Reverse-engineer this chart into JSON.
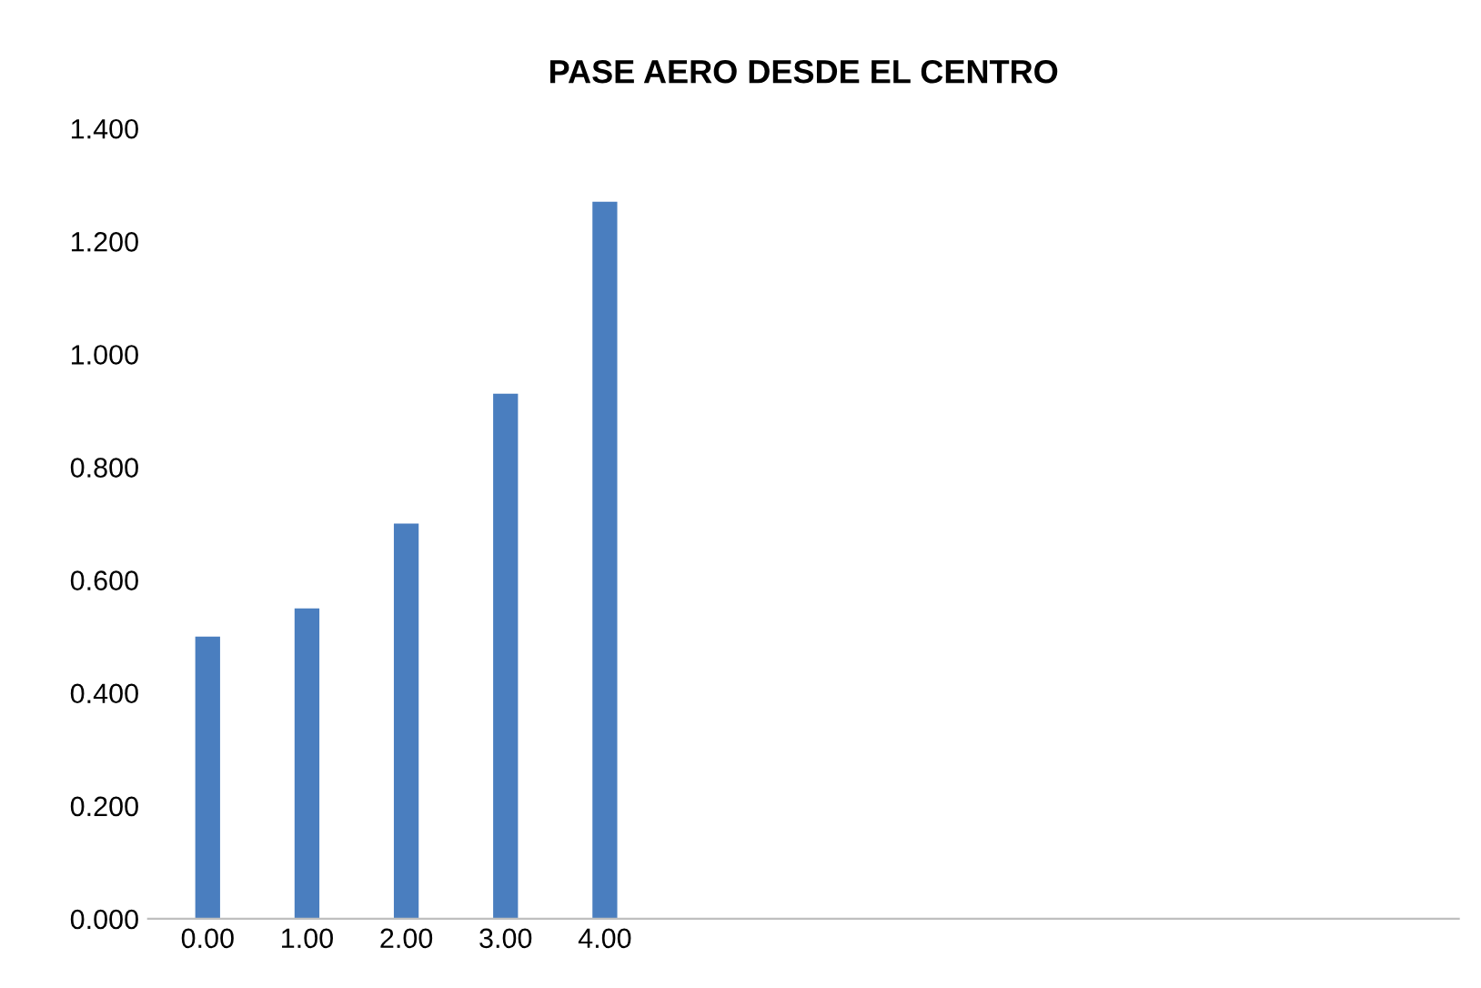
{
  "chart_data": {
    "type": "bar",
    "title": "PASE AERO DESDE EL CENTRO",
    "categories": [
      "0.00",
      "1.00",
      "2.00",
      "3.00",
      "4.00"
    ],
    "values": [
      0.5,
      0.55,
      0.7,
      0.93,
      1.27
    ],
    "color": "#4a7ebf",
    "ylim": [
      0,
      1.4
    ],
    "yticks": [
      {
        "value": 0,
        "label": "0.000"
      },
      {
        "value": 0.2,
        "label": "0.200"
      },
      {
        "value": 0.4,
        "label": "0.400"
      },
      {
        "value": 0.6,
        "label": "0.600"
      },
      {
        "value": 0.8,
        "label": "0.800"
      },
      {
        "value": 1.0,
        "label": "1.000"
      },
      {
        "value": 1.2,
        "label": "1.200"
      },
      {
        "value": 1.4,
        "label": "1.400"
      }
    ],
    "grid": false
  }
}
